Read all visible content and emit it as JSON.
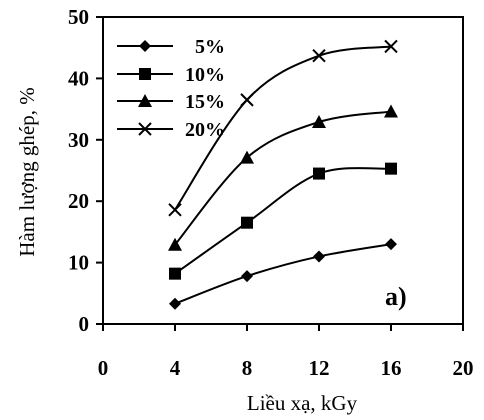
{
  "chart_data": {
    "type": "line",
    "xlabel": "Liều xạ, kGy",
    "ylabel": "Hàm lượng ghép, %",
    "xlim": [
      0,
      20
    ],
    "ylim": [
      0,
      50
    ],
    "xticks": [
      0,
      4,
      8,
      12,
      16,
      20
    ],
    "yticks": [
      0,
      10,
      20,
      30,
      40,
      50
    ],
    "grid": false,
    "legend_position": "top-left",
    "annotation": "a)",
    "x": [
      4,
      8,
      12,
      16
    ],
    "series": [
      {
        "name": "5%",
        "marker": "diamond",
        "values": [
          3.3,
          7.8,
          11.0,
          13.0
        ]
      },
      {
        "name": "10%",
        "marker": "square",
        "values": [
          8.2,
          16.5,
          24.5,
          25.3
        ]
      },
      {
        "name": "15%",
        "marker": "triangle",
        "values": [
          12.9,
          27.1,
          32.9,
          34.6
        ]
      },
      {
        "name": "20%",
        "marker": "x",
        "values": [
          18.6,
          36.5,
          43.7,
          45.2
        ]
      }
    ]
  }
}
